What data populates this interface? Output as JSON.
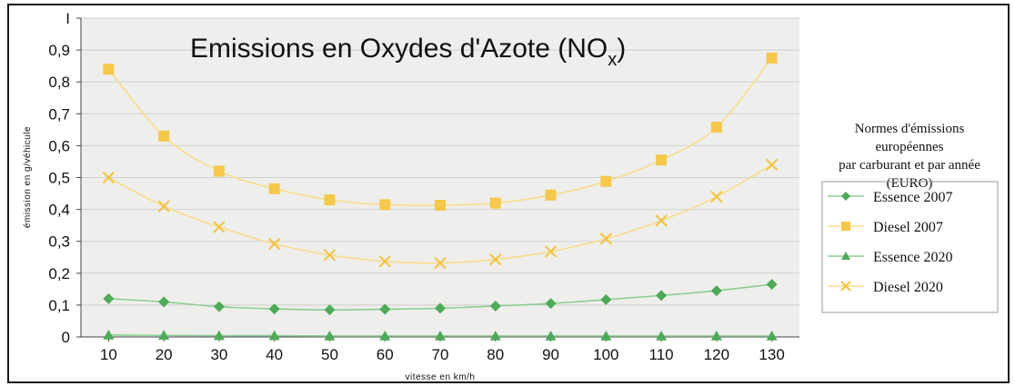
{
  "chart_data": {
    "type": "line",
    "title": "Emissions en Oxydes d'Azote (NO",
    "title_subscript": "x",
    "title_close": ")",
    "xlabel": "vitesse en km/h",
    "ylabel": "émission en g/véhicule",
    "x": [
      10,
      20,
      30,
      40,
      50,
      60,
      70,
      80,
      90,
      100,
      110,
      120,
      130
    ],
    "ylim": [
      0,
      1
    ],
    "yticks": [
      0,
      0.1,
      0.2,
      0.3,
      0.4,
      0.5,
      0.6,
      0.7,
      0.8,
      0.9,
      1
    ],
    "ytick_labels": [
      "0",
      "0,1",
      "0,2",
      "0,3",
      "0,4",
      "0,5",
      "0,6",
      "0,7",
      "0,8",
      "0,9",
      "I"
    ],
    "xtick_labels": [
      "10",
      "20",
      "30",
      "40",
      "50",
      "60",
      "70",
      "80",
      "90",
      "100",
      "110",
      "120",
      "130"
    ],
    "grid": true,
    "legend_title": [
      "Normes d'émissions",
      "européennes",
      "par carburant et par année",
      "(EURO)"
    ],
    "legend_position": "right",
    "series": [
      {
        "name": "Essence 2007",
        "marker": "diamond",
        "color": "#4daa57",
        "line_color": "#8ccf94",
        "values": [
          0.12,
          0.11,
          0.095,
          0.088,
          0.085,
          0.087,
          0.09,
          0.097,
          0.105,
          0.117,
          0.13,
          0.145,
          0.165
        ]
      },
      {
        "name": "Diesel 2007",
        "marker": "square",
        "color": "#f5c84b",
        "line_color": "#f8dc8c",
        "values": [
          0.84,
          0.63,
          0.52,
          0.465,
          0.43,
          0.415,
          0.413,
          0.42,
          0.445,
          0.488,
          0.555,
          0.658,
          0.875
        ]
      },
      {
        "name": "Essence 2020",
        "marker": "triangle",
        "color": "#4daa57",
        "line_color": "#8ccf94",
        "values": [
          0.006,
          0.005,
          0.004,
          0.004,
          0.003,
          0.003,
          0.003,
          0.003,
          0.003,
          0.003,
          0.003,
          0.003,
          0.003
        ]
      },
      {
        "name": "Diesel 2020",
        "marker": "x",
        "color": "#f3c23e",
        "line_color": "#f8dc8c",
        "values": [
          0.5,
          0.41,
          0.345,
          0.292,
          0.257,
          0.237,
          0.232,
          0.243,
          0.268,
          0.308,
          0.365,
          0.44,
          0.54
        ]
      }
    ]
  }
}
